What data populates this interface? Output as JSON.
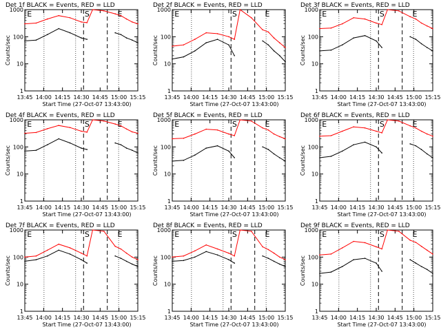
{
  "chart_data": [
    {
      "type": "line",
      "title": "Det 1f BLACK = Events, RED = LLD",
      "xlabel": "Start Time (27-Oct-07 13:43:00)",
      "ylabel": "Counts/sec",
      "ylim": [
        1,
        1000
      ],
      "yscale": "log",
      "x_tick_labels": [
        "13:45",
        "14:00",
        "14:15",
        "14:30",
        "14:45",
        "15:00",
        "15:15"
      ],
      "y_tick_labels": [
        "1",
        "10",
        "100",
        "1000"
      ],
      "annotations": [
        "E",
        "S",
        "E"
      ],
      "series": [
        {
          "name": "BLACK = Events",
          "color": "#000000",
          "x": [
            0,
            10,
            20,
            30,
            40,
            50,
            55,
            60,
            70,
            80,
            85,
            90,
            95,
            100
          ],
          "y": [
            70,
            75,
            120,
            200,
            140,
            90,
            80,
            null,
            null,
            140,
            120,
            90,
            75,
            60
          ]
        },
        {
          "name": "RED = LLD",
          "color": "#ff0000",
          "x": [
            0,
            10,
            20,
            30,
            40,
            50,
            55,
            60,
            70,
            80,
            85,
            90,
            95,
            100
          ],
          "y": [
            300,
            320,
            450,
            600,
            500,
            350,
            330,
            1000,
            900,
            700,
            600,
            450,
            350,
            300
          ]
        }
      ]
    },
    {
      "type": "line",
      "title": "Det 2f BLACK = Events, RED = LLD",
      "xlabel": "Start Time (27-Oct-07 13:43:00)",
      "ylabel": "Counts/sec",
      "ylim": [
        1,
        1000
      ],
      "yscale": "log",
      "x_tick_labels": [
        "13:45",
        "14:00",
        "14:15",
        "14:30",
        "14:45",
        "15:00",
        "15:15"
      ],
      "y_tick_labels": [
        "1",
        "10",
        "100",
        "1000"
      ],
      "annotations": [
        "E",
        "S",
        "E"
      ],
      "series": [
        {
          "name": "BLACK = Events",
          "color": "#000000",
          "x": [
            0,
            10,
            20,
            30,
            40,
            50,
            55,
            60,
            70,
            80,
            85,
            90,
            95,
            100
          ],
          "y": [
            15,
            18,
            30,
            60,
            80,
            50,
            20,
            null,
            null,
            70,
            50,
            30,
            20,
            12
          ]
        },
        {
          "name": "RED = LLD",
          "color": "#ff0000",
          "x": [
            0,
            10,
            20,
            30,
            40,
            50,
            55,
            60,
            70,
            80,
            85,
            90,
            95,
            100
          ],
          "y": [
            45,
            50,
            80,
            140,
            130,
            100,
            80,
            1000,
            500,
            180,
            150,
            90,
            60,
            40
          ]
        }
      ]
    },
    {
      "type": "line",
      "title": "Det 3f BLACK = Events, RED = LLD",
      "xlabel": "Start Time (27-Oct-07 13:43:00)",
      "ylabel": "Counts/sec",
      "ylim": [
        1,
        1000
      ],
      "yscale": "log",
      "x_tick_labels": [
        "13:45",
        "14:00",
        "14:15",
        "14:30",
        "14:45",
        "15:00",
        "15:15"
      ],
      "y_tick_labels": [
        "1",
        "10",
        "100",
        "1000"
      ],
      "annotations": [
        "E",
        "S",
        "E"
      ],
      "series": [
        {
          "name": "BLACK = Events",
          "color": "#000000",
          "x": [
            0,
            10,
            20,
            30,
            40,
            50,
            55,
            60,
            70,
            80,
            85,
            90,
            95,
            100
          ],
          "y": [
            30,
            32,
            50,
            90,
            110,
            70,
            40,
            null,
            null,
            100,
            80,
            55,
            40,
            30
          ]
        },
        {
          "name": "RED = LLD",
          "color": "#ff0000",
          "x": [
            0,
            10,
            20,
            30,
            40,
            50,
            55,
            60,
            70,
            80,
            85,
            90,
            95,
            100
          ],
          "y": [
            200,
            210,
            300,
            500,
            450,
            320,
            280,
            1000,
            900,
            550,
            450,
            320,
            250,
            200
          ]
        }
      ]
    },
    {
      "type": "line",
      "title": "Det 4f BLACK = Events, RED = LLD",
      "xlabel": "Start Time (27-Oct-07 13:43:00)",
      "ylabel": "Counts/sec",
      "ylim": [
        1,
        1000
      ],
      "yscale": "log",
      "x_tick_labels": [
        "13:45",
        "14:00",
        "14:15",
        "14:30",
        "14:45",
        "15:00",
        "15:15"
      ],
      "y_tick_labels": [
        "1",
        "10",
        "100",
        "1000"
      ],
      "annotations": [
        "E",
        "S",
        "E"
      ],
      "series": [
        {
          "name": "BLACK = Events",
          "color": "#000000",
          "x": [
            0,
            10,
            20,
            30,
            40,
            50,
            55,
            60,
            70,
            80,
            85,
            90,
            95,
            100
          ],
          "y": [
            70,
            75,
            120,
            200,
            140,
            90,
            80,
            null,
            null,
            140,
            120,
            90,
            75,
            60
          ]
        },
        {
          "name": "RED = LLD",
          "color": "#ff0000",
          "x": [
            0,
            10,
            20,
            30,
            40,
            50,
            55,
            60,
            70,
            80,
            85,
            90,
            95,
            100
          ],
          "y": [
            320,
            340,
            470,
            620,
            520,
            380,
            350,
            1000,
            900,
            700,
            600,
            460,
            360,
            320
          ]
        }
      ]
    },
    {
      "type": "line",
      "title": "Det 5f BLACK = Events, RED = LLD",
      "xlabel": "Start Time (27-Oct-07 13:43:00)",
      "ylabel": "Counts/sec",
      "ylim": [
        1,
        1000
      ],
      "yscale": "log",
      "x_tick_labels": [
        "13:45",
        "14:00",
        "14:15",
        "14:30",
        "14:45",
        "15:00",
        "15:15"
      ],
      "y_tick_labels": [
        "1",
        "10",
        "100",
        "1000"
      ],
      "annotations": [
        "E",
        "S",
        "E"
      ],
      "series": [
        {
          "name": "BLACK = Events",
          "color": "#000000",
          "x": [
            0,
            10,
            20,
            30,
            40,
            50,
            55,
            60,
            70,
            80,
            85,
            90,
            95,
            100
          ],
          "y": [
            30,
            32,
            50,
            90,
            110,
            70,
            40,
            null,
            null,
            100,
            80,
            55,
            40,
            30
          ]
        },
        {
          "name": "RED = LLD",
          "color": "#ff0000",
          "x": [
            0,
            10,
            20,
            30,
            40,
            50,
            55,
            60,
            70,
            80,
            85,
            90,
            95,
            100
          ],
          "y": [
            200,
            210,
            300,
            450,
            420,
            300,
            260,
            1000,
            900,
            500,
            420,
            300,
            240,
            200
          ]
        }
      ]
    },
    {
      "type": "line",
      "title": "Det 6f BLACK = Events, RED = LLD",
      "xlabel": "Start Time (27-Oct-07 13:43:00)",
      "ylabel": "Counts/sec",
      "ylim": [
        1,
        1000
      ],
      "yscale": "log",
      "x_tick_labels": [
        "13:45",
        "14:00",
        "14:15",
        "14:30",
        "14:45",
        "15:00",
        "15:15"
      ],
      "y_tick_labels": [
        "1",
        "10",
        "100",
        "1000"
      ],
      "annotations": [
        "E",
        "S",
        "E"
      ],
      "series": [
        {
          "name": "BLACK = Events",
          "color": "#000000",
          "x": [
            0,
            10,
            20,
            30,
            40,
            50,
            55,
            60,
            70,
            80,
            85,
            90,
            95,
            100
          ],
          "y": [
            40,
            45,
            70,
            120,
            150,
            100,
            60,
            null,
            null,
            130,
            110,
            80,
            55,
            40
          ]
        },
        {
          "name": "RED = LLD",
          "color": "#ff0000",
          "x": [
            0,
            10,
            20,
            30,
            40,
            50,
            55,
            60,
            70,
            80,
            85,
            90,
            95,
            100
          ],
          "y": [
            250,
            260,
            380,
            550,
            500,
            380,
            330,
            1000,
            900,
            600,
            500,
            380,
            300,
            250
          ]
        }
      ]
    },
    {
      "type": "line",
      "title": "Det 7f BLACK = Events, RED = LLD",
      "xlabel": "Start Time (27-Oct-07 13:43:00)",
      "ylabel": "Counts/sec",
      "ylim": [
        1,
        1000
      ],
      "yscale": "log",
      "x_tick_labels": [
        "13:45",
        "14:00",
        "14:15",
        "14:30",
        "14:45",
        "15:00",
        "15:15"
      ],
      "y_tick_labels": [
        "1",
        "10",
        "100",
        "1000"
      ],
      "annotations": [
        "E",
        "S",
        "E"
      ],
      "series": [
        {
          "name": "BLACK = Events",
          "color": "#000000",
          "x": [
            0,
            10,
            20,
            30,
            40,
            50,
            55,
            60,
            70,
            80,
            85,
            90,
            95,
            100
          ],
          "y": [
            70,
            80,
            110,
            180,
            130,
            80,
            60,
            null,
            null,
            110,
            90,
            70,
            55,
            45
          ]
        },
        {
          "name": "RED = LLD",
          "color": "#ff0000",
          "x": [
            0,
            10,
            20,
            30,
            40,
            50,
            55,
            60,
            70,
            80,
            85,
            90,
            95,
            100
          ],
          "y": [
            100,
            110,
            180,
            300,
            220,
            140,
            110,
            1000,
            900,
            250,
            200,
            140,
            100,
            80
          ]
        }
      ]
    },
    {
      "type": "line",
      "title": "Det 8f BLACK = Events, RED = LLD",
      "xlabel": "Start Time (27-Oct-07 13:43:00)",
      "ylabel": "Counts/sec",
      "ylim": [
        1,
        1000
      ],
      "yscale": "log",
      "x_tick_labels": [
        "13:45",
        "14:00",
        "14:15",
        "14:30",
        "14:45",
        "15:00",
        "15:15"
      ],
      "y_tick_labels": [
        "1",
        "10",
        "100",
        "1000"
      ],
      "annotations": [
        "E",
        "S",
        "E"
      ],
      "series": [
        {
          "name": "BLACK = Events",
          "color": "#000000",
          "x": [
            0,
            10,
            20,
            30,
            40,
            50,
            55,
            60,
            70,
            80,
            85,
            90,
            95,
            100
          ],
          "y": [
            70,
            75,
            100,
            160,
            120,
            80,
            60,
            null,
            null,
            110,
            90,
            70,
            55,
            45
          ]
        },
        {
          "name": "RED = LLD",
          "color": "#ff0000",
          "x": [
            0,
            10,
            20,
            30,
            40,
            50,
            55,
            60,
            70,
            80,
            85,
            90,
            95,
            100
          ],
          "y": [
            100,
            110,
            170,
            280,
            200,
            140,
            110,
            1000,
            900,
            240,
            190,
            140,
            100,
            80
          ]
        }
      ]
    },
    {
      "type": "line",
      "title": "Det 9f BLACK = Events, RED = LLD",
      "xlabel": "Start Time (27-Oct-07 13:43:00)",
      "ylabel": "Counts/sec",
      "ylim": [
        1,
        1000
      ],
      "yscale": "log",
      "x_tick_labels": [
        "13:45",
        "14:00",
        "14:15",
        "14:30",
        "14:45",
        "15:00",
        "15:15"
      ],
      "y_tick_labels": [
        "1",
        "10",
        "100",
        "1000"
      ],
      "annotations": [
        "E",
        "S",
        "E"
      ],
      "series": [
        {
          "name": "BLACK = Events",
          "color": "#000000",
          "x": [
            0,
            10,
            20,
            30,
            40,
            50,
            55,
            60,
            70,
            80,
            85,
            90,
            95,
            100
          ],
          "y": [
            25,
            28,
            45,
            80,
            90,
            60,
            30,
            null,
            null,
            80,
            60,
            45,
            35,
            25
          ]
        },
        {
          "name": "RED = LLD",
          "color": "#ff0000",
          "x": [
            0,
            10,
            20,
            30,
            40,
            50,
            55,
            60,
            70,
            80,
            85,
            90,
            95,
            100
          ],
          "y": [
            120,
            130,
            220,
            380,
            340,
            240,
            200,
            1000,
            900,
            420,
            350,
            250,
            180,
            130
          ]
        }
      ]
    }
  ]
}
